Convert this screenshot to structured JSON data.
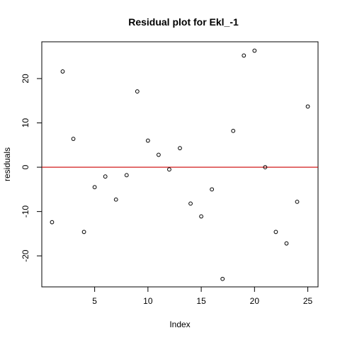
{
  "chart_data": {
    "type": "scatter",
    "title": "Residual plot for Ekl_-1",
    "xlabel": "Index",
    "ylabel": "residuals",
    "xlim": [
      0.04,
      25.96
    ],
    "ylim": [
      -27,
      28.3
    ],
    "x_ticks": [
      5,
      10,
      15,
      20,
      25
    ],
    "y_ticks": [
      -20,
      -10,
      0,
      10,
      20
    ],
    "grid": false,
    "reference_line": {
      "y": 0,
      "color": "#cc0000"
    },
    "point_color": "#000000",
    "series": [
      {
        "x": [
          1,
          2,
          3,
          4,
          5,
          6,
          7,
          8,
          9,
          10,
          11,
          12,
          13,
          14,
          15,
          16,
          17,
          18,
          19,
          20,
          21,
          22,
          23,
          24,
          25
        ],
        "values": [
          -12.4,
          21.6,
          6.4,
          -14.6,
          -4.5,
          -2.1,
          -7.3,
          -1.8,
          17.1,
          6.0,
          2.8,
          -0.5,
          4.3,
          -8.2,
          -11.1,
          -5.0,
          -25.2,
          8.2,
          25.2,
          26.3,
          0.0,
          -14.6,
          -17.2,
          -7.8,
          13.7
        ]
      }
    ]
  }
}
